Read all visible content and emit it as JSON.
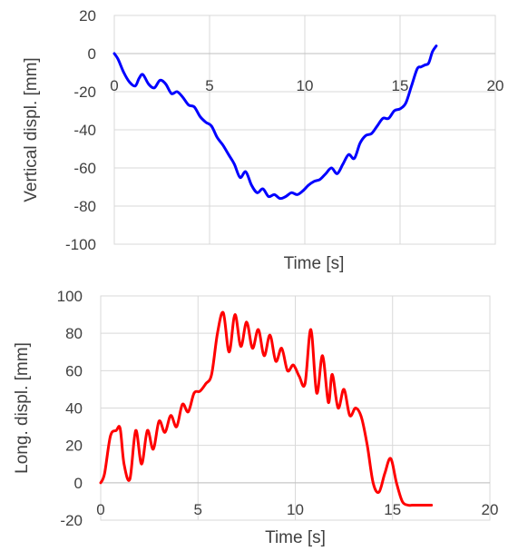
{
  "chart_data": [
    {
      "type": "line",
      "xlabel": "Time [s]",
      "ylabel": "Vertical displ. [mm]",
      "xlim": [
        0,
        20
      ],
      "ylim": [
        -100,
        20
      ],
      "x_ticks": [
        0,
        5,
        10,
        15,
        20
      ],
      "y_ticks": [
        20,
        0,
        -20,
        -40,
        -60,
        -80,
        -100
      ],
      "grid": true,
      "legend": "none",
      "series": [
        {
          "color": "#0000ff",
          "x": [
            0,
            0.2,
            0.5,
            0.8,
            1.1,
            1.3,
            1.5,
            1.8,
            2.1,
            2.4,
            2.7,
            3.0,
            3.3,
            3.6,
            3.9,
            4.2,
            4.5,
            4.8,
            5.1,
            5.4,
            5.7,
            6.0,
            6.3,
            6.6,
            6.9,
            7.2,
            7.5,
            7.8,
            8.1,
            8.4,
            8.7,
            9.0,
            9.3,
            9.6,
            9.9,
            10.2,
            10.5,
            10.8,
            11.1,
            11.4,
            11.7,
            12.0,
            12.3,
            12.6,
            12.9,
            13.2,
            13.5,
            13.8,
            14.1,
            14.4,
            14.7,
            15.0,
            15.3,
            15.6,
            15.9,
            16.1,
            16.3,
            16.5,
            16.7,
            16.9
          ],
          "y": [
            0,
            -3,
            -10,
            -15,
            -17,
            -13,
            -11,
            -16,
            -18,
            -14,
            -16,
            -21,
            -20,
            -23,
            -27,
            -28,
            -33,
            -36,
            -38,
            -44,
            -48,
            -53,
            -58,
            -65,
            -62,
            -69,
            -73,
            -71,
            -75,
            -74,
            -76,
            -75,
            -73,
            -74,
            -72,
            -69,
            -67,
            -66,
            -63,
            -60,
            -63,
            -58,
            -53,
            -55,
            -47,
            -43,
            -42,
            -38,
            -34,
            -34,
            -30,
            -29,
            -26,
            -17,
            -8,
            -7,
            -6,
            -5,
            1,
            4
          ]
        }
      ]
    },
    {
      "type": "line",
      "xlabel": "Time [s]",
      "ylabel": "Long. displ. [mm]",
      "xlim": [
        0,
        20
      ],
      "ylim": [
        -20,
        100
      ],
      "x_ticks": [
        0,
        5,
        10,
        15,
        20
      ],
      "y_ticks": [
        100,
        80,
        60,
        40,
        20,
        0,
        -20
      ],
      "grid": true,
      "legend": "none",
      "series": [
        {
          "color": "#ff0000",
          "x": [
            0,
            0.2,
            0.5,
            0.8,
            1.0,
            1.2,
            1.5,
            1.8,
            2.1,
            2.4,
            2.7,
            3.0,
            3.3,
            3.6,
            3.9,
            4.2,
            4.5,
            4.8,
            5.1,
            5.4,
            5.7,
            6.0,
            6.3,
            6.6,
            6.9,
            7.2,
            7.5,
            7.8,
            8.1,
            8.4,
            8.7,
            9.0,
            9.3,
            9.6,
            9.9,
            10.2,
            10.5,
            10.8,
            11.1,
            11.4,
            11.7,
            11.9,
            12.2,
            12.5,
            12.8,
            13.1,
            13.4,
            13.7,
            14.0,
            14.3,
            14.6,
            14.9,
            15.2,
            15.5,
            15.8,
            16.0,
            16.2,
            16.4,
            16.6,
            16.8,
            17.0
          ],
          "y": [
            0,
            5,
            25,
            28,
            29,
            10,
            2,
            28,
            10,
            28,
            18,
            33,
            27,
            36,
            30,
            42,
            38,
            48,
            49,
            53,
            58,
            80,
            91,
            70,
            90,
            73,
            86,
            72,
            82,
            68,
            79,
            65,
            72,
            60,
            63,
            57,
            53,
            82,
            48,
            68,
            43,
            58,
            40,
            50,
            36,
            40,
            35,
            20,
            0,
            -5,
            5,
            13,
            0,
            -10,
            -12,
            -12,
            -12,
            -12,
            -12,
            -12,
            -12
          ]
        }
      ]
    }
  ]
}
